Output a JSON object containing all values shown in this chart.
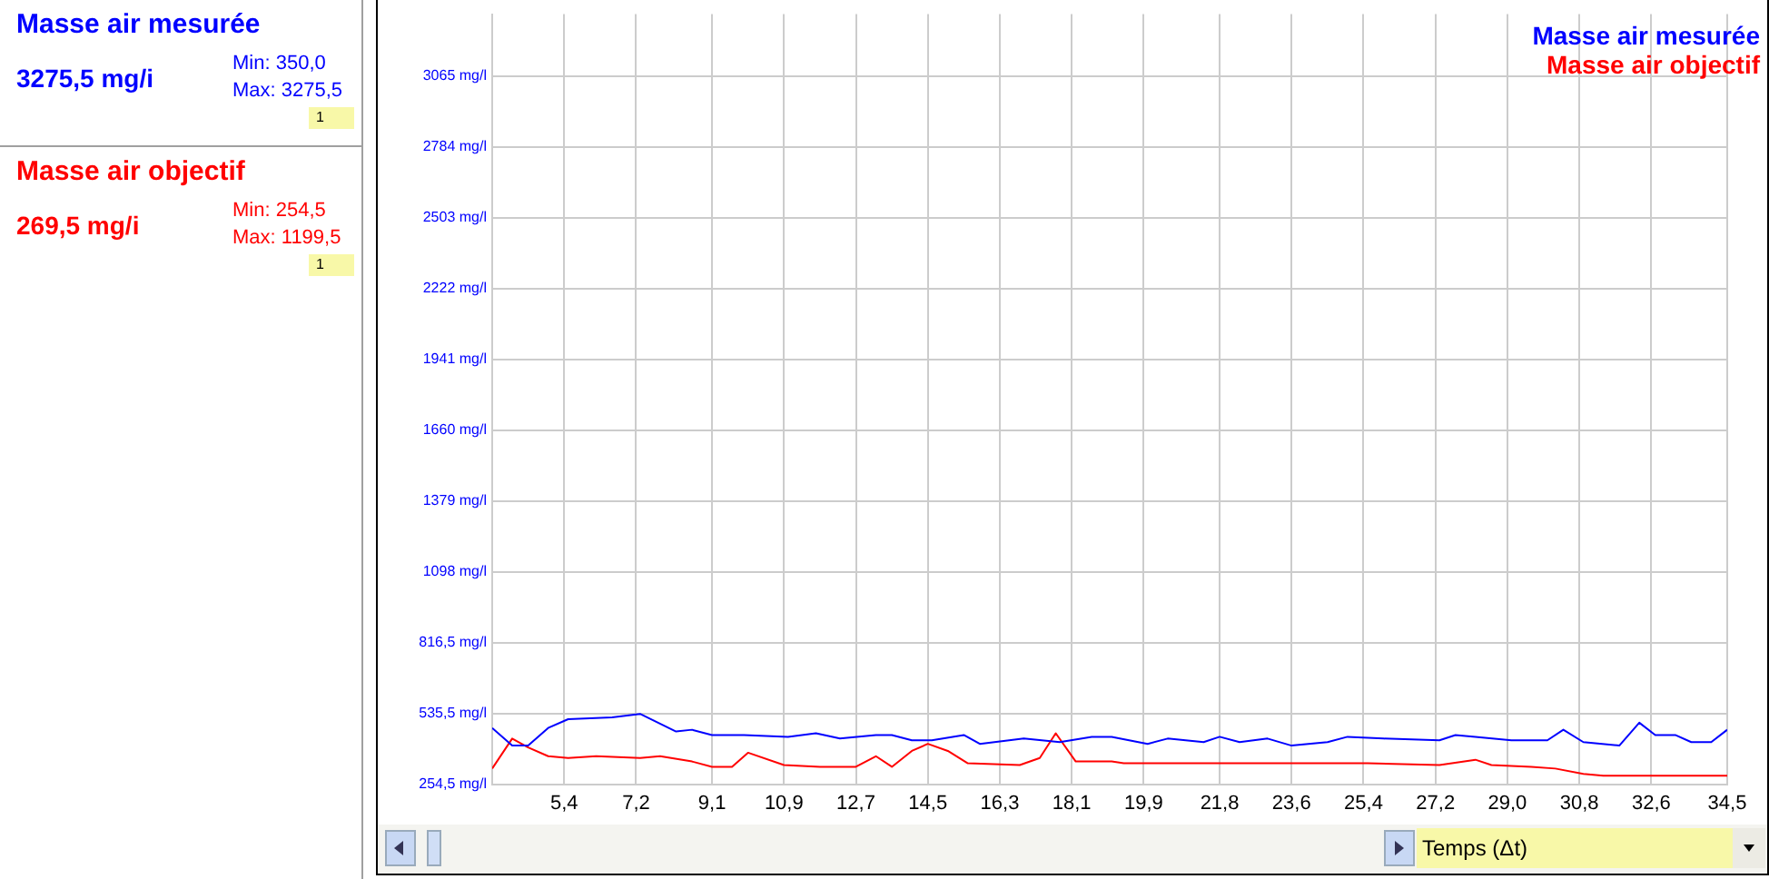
{
  "chart_data": {
    "type": "line",
    "xlabel": "Temps (Δt)",
    "annotations": [
      "Masse air mesurée",
      "3275,5 mg/i",
      "Min: 350,0",
      "Max: 3275,5",
      "1",
      "Masse air objectif",
      "269,5 mg/i",
      "Min: 254,5",
      "Max: 1199,5",
      "1"
    ],
    "series": [
      {
        "name": "Masse air mesurée",
        "color": "#0000ff",
        "x": [
          3.6,
          4.1,
          4.5,
          5.0,
          5.5,
          6.6,
          7.3,
          8.2,
          8.6,
          9.1,
          9.9,
          11.0,
          11.7,
          12.3,
          13.2,
          13.6,
          14.1,
          14.6,
          15.4,
          15.8,
          16.9,
          17.8,
          18.6,
          19.1,
          20.0,
          20.5,
          21.4,
          21.8,
          22.3,
          23.0,
          23.6,
          24.5,
          25.0,
          25.9,
          27.3,
          27.7,
          28.2,
          29.1,
          30.0,
          30.4,
          30.9,
          31.8,
          32.3,
          32.7,
          33.2,
          33.6,
          34.1,
          34.5
        ],
        "values": [
          479,
          409,
          409,
          479,
          514,
          521,
          535,
          465,
          472,
          451,
          451,
          444,
          458,
          437,
          451,
          451,
          430,
          430,
          451,
          416,
          437,
          423,
          444,
          444,
          416,
          437,
          423,
          444,
          423,
          437,
          409,
          423,
          444,
          437,
          430,
          451,
          444,
          430,
          430,
          472,
          423,
          409,
          500,
          451,
          451,
          423,
          423,
          472
        ]
      },
      {
        "name": "Masse air objectif",
        "color": "#ff0000",
        "x": [
          3.6,
          4.1,
          4.5,
          5.0,
          5.5,
          6.2,
          7.3,
          7.8,
          8.6,
          9.1,
          9.6,
          10.0,
          10.9,
          11.8,
          12.7,
          13.2,
          13.6,
          14.1,
          14.5,
          15.0,
          15.5,
          16.8,
          17.3,
          17.7,
          18.2,
          19.1,
          19.4,
          23.7,
          25.5,
          27.3,
          28.2,
          28.6,
          29.6,
          30.2,
          30.9,
          31.4,
          32.8,
          34.5
        ],
        "values": [
          318,
          437,
          402,
          367,
          360,
          367,
          360,
          367,
          346,
          325,
          325,
          381,
          332,
          325,
          325,
          367,
          325,
          388,
          416,
          388,
          339,
          332,
          360,
          458,
          346,
          346,
          339,
          339,
          339,
          332,
          353,
          332,
          325,
          318,
          297,
          290,
          290,
          290
        ]
      }
    ],
    "xlim": [
      3.6,
      34.5
    ],
    "xticks": [
      {
        "value": 5.4,
        "label": "5,4"
      },
      {
        "value": 7.2,
        "label": "7,2"
      },
      {
        "value": 9.1,
        "label": "9,1"
      },
      {
        "value": 10.9,
        "label": "10,9"
      },
      {
        "value": 12.7,
        "label": "12,7"
      },
      {
        "value": 14.5,
        "label": "14,5"
      },
      {
        "value": 16.3,
        "label": "16,3"
      },
      {
        "value": 18.1,
        "label": "18,1"
      },
      {
        "value": 19.9,
        "label": "19,9"
      },
      {
        "value": 21.8,
        "label": "21,8"
      },
      {
        "value": 23.6,
        "label": "23,6"
      },
      {
        "value": 25.4,
        "label": "25,4"
      },
      {
        "value": 27.2,
        "label": "27,2"
      },
      {
        "value": 29.0,
        "label": "29,0"
      },
      {
        "value": 30.8,
        "label": "30,8"
      },
      {
        "value": 32.6,
        "label": "32,6"
      },
      {
        "value": 34.5,
        "label": "34,5"
      }
    ],
    "ylim": [
      254.5,
      3311
    ],
    "yticks": [
      {
        "value": 254.5,
        "label": "254,5 mg/l"
      },
      {
        "value": 535.5,
        "label": "535,5 mg/l"
      },
      {
        "value": 816.5,
        "label": "816,5 mg/l"
      },
      {
        "value": 1098,
        "label": "1098 mg/l"
      },
      {
        "value": 1379,
        "label": "1379 mg/l"
      },
      {
        "value": 1660,
        "label": "1660 mg/l"
      },
      {
        "value": 1941,
        "label": "1941 mg/l"
      },
      {
        "value": 2222,
        "label": "2222 mg/l"
      },
      {
        "value": 2503,
        "label": "2503 mg/l"
      },
      {
        "value": 2784,
        "label": "2784 mg/l"
      },
      {
        "value": 3065,
        "label": "3065 mg/l"
      }
    ],
    "grid": true,
    "legend": "top right",
    "marker": "none",
    "line_style": "solid"
  }
}
